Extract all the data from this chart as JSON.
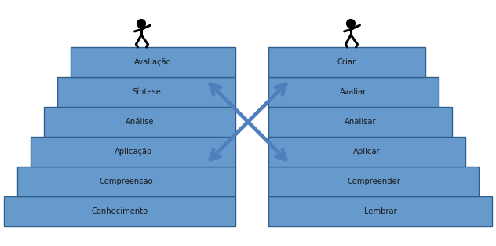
{
  "left_labels": [
    "Conhecimento",
    "Compreensão",
    "Aplicação",
    "Análise",
    "Síntese",
    "Avaliação"
  ],
  "right_labels": [
    "Lembrar",
    "Compreender",
    "Aplicar",
    "Analisar",
    "Avaliar",
    "Criar"
  ],
  "step_color": "#5B8DB8",
  "step_face_color": "#6699CC",
  "step_edge_color": "#2F5F8A",
  "bg_color": "#ffffff",
  "text_color": "#1a1a1a",
  "arrow_color": "#4F7FBD",
  "font_size": 7.2,
  "figure_width": 6.32,
  "figure_height": 3.13,
  "dpi": 100
}
